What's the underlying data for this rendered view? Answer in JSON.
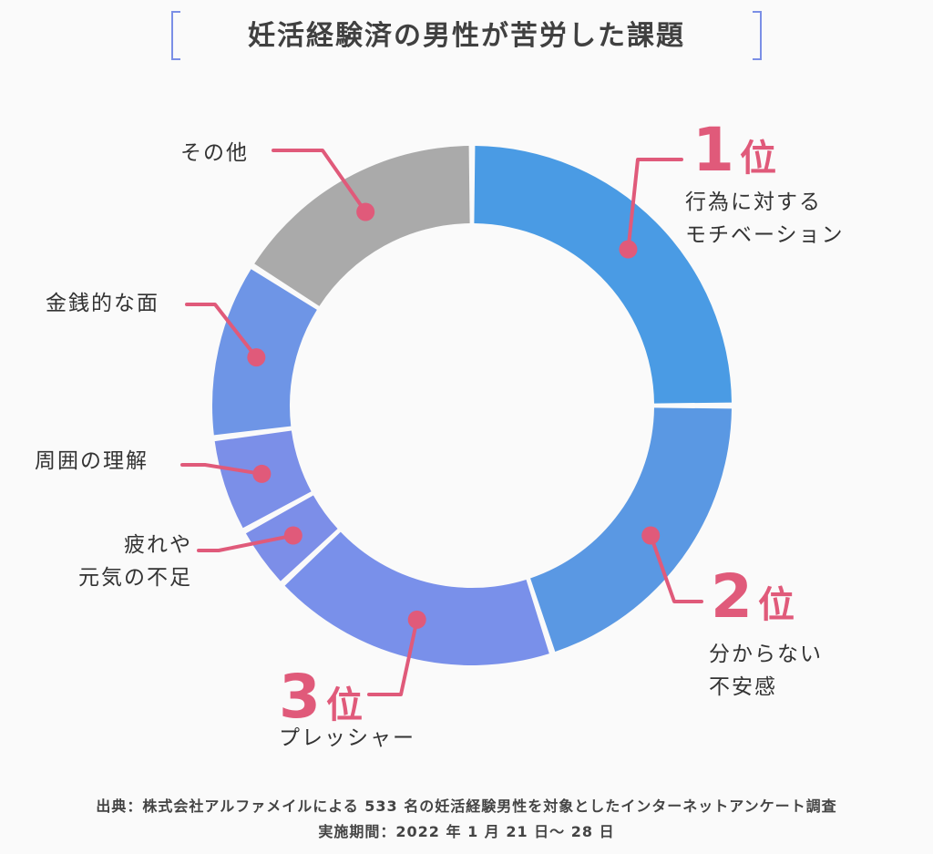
{
  "title": "妊活経験済の男性が苦労した課題",
  "chart_data": {
    "type": "donut",
    "title": "妊活経験済の男性が苦労した課題",
    "rank_suffix": "位",
    "series": [
      {
        "label": "行為に対するモチベーション",
        "label_lines": [
          "行為に対する",
          "モチベーション"
        ],
        "value": 25.0,
        "rank": "1",
        "color": "#4a9be4"
      },
      {
        "label": "分からない不安感",
        "label_lines": [
          "分からない",
          "不安感"
        ],
        "value": 20.0,
        "rank": "2",
        "color": "#5a98e3"
      },
      {
        "label": "プレッシャー",
        "label_lines": [
          "プレッシャー"
        ],
        "value": 18.0,
        "rank": "3",
        "color": "#7990ea"
      },
      {
        "label": "疲れや元気の不足",
        "label_lines": [
          "疲れや",
          "元気の不足"
        ],
        "value": 4.0,
        "rank": "",
        "color": "#7c8ee8"
      },
      {
        "label": "周囲の理解",
        "label_lines": [
          "周囲の理解"
        ],
        "value": 6.0,
        "rank": "",
        "color": "#7b8fe8"
      },
      {
        "label": "金銭的な面",
        "label_lines": [
          "金銭的な面"
        ],
        "value": 11.0,
        "rank": "",
        "color": "#6e95e6"
      },
      {
        "label": "その他",
        "label_lines": [
          "その他"
        ],
        "value": 16.0,
        "rank": "",
        "color": "#aaaaaa"
      }
    ],
    "accent_color": "#e05a7a"
  },
  "footer": {
    "source": "出典：株式会社アルファメイルによる 533 名の妊活経験男性を対象としたインターネットアンケート調査",
    "period": "実施期間：2022 年 1 月 21 日〜 28 日"
  }
}
